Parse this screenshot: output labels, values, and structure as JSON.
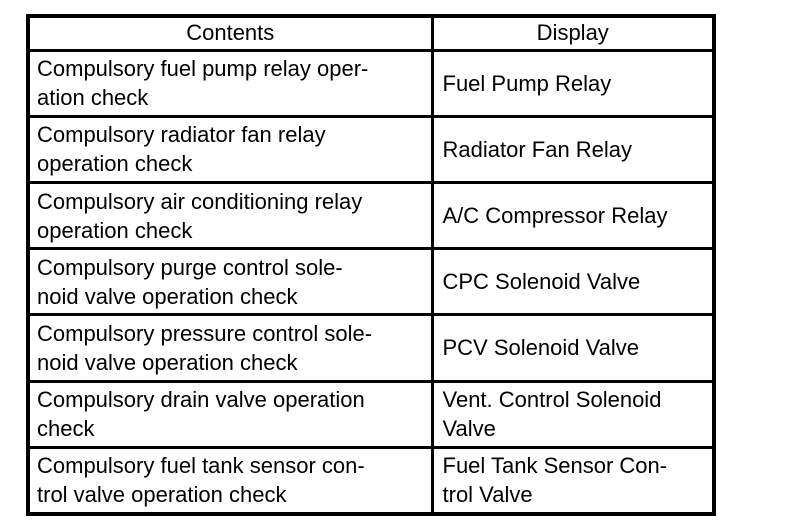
{
  "table": {
    "colors": {
      "border": "#000000",
      "text": "#000000",
      "background": "#ffffff"
    },
    "headers": {
      "contents": "Contents",
      "display": "Display"
    },
    "rows": [
      {
        "contents": "Compulsory fuel pump relay oper-\nation check",
        "display": "Fuel Pump Relay"
      },
      {
        "contents": "Compulsory radiator fan relay\noperation check",
        "display": "Radiator Fan Relay"
      },
      {
        "contents": "Compulsory air conditioning relay\noperation check",
        "display": "A/C Compressor Relay"
      },
      {
        "contents": "Compulsory purge control sole-\nnoid valve operation check",
        "display": "CPC Solenoid Valve"
      },
      {
        "contents": "Compulsory pressure control sole-\nnoid valve operation check",
        "display": "PCV Solenoid Valve"
      },
      {
        "contents": "Compulsory drain valve operation\ncheck",
        "display": "Vent. Control Solenoid\nValve"
      },
      {
        "contents": "Compulsory fuel tank sensor con-\ntrol valve operation check",
        "display": "Fuel Tank Sensor Con-\ntrol Valve"
      }
    ]
  }
}
